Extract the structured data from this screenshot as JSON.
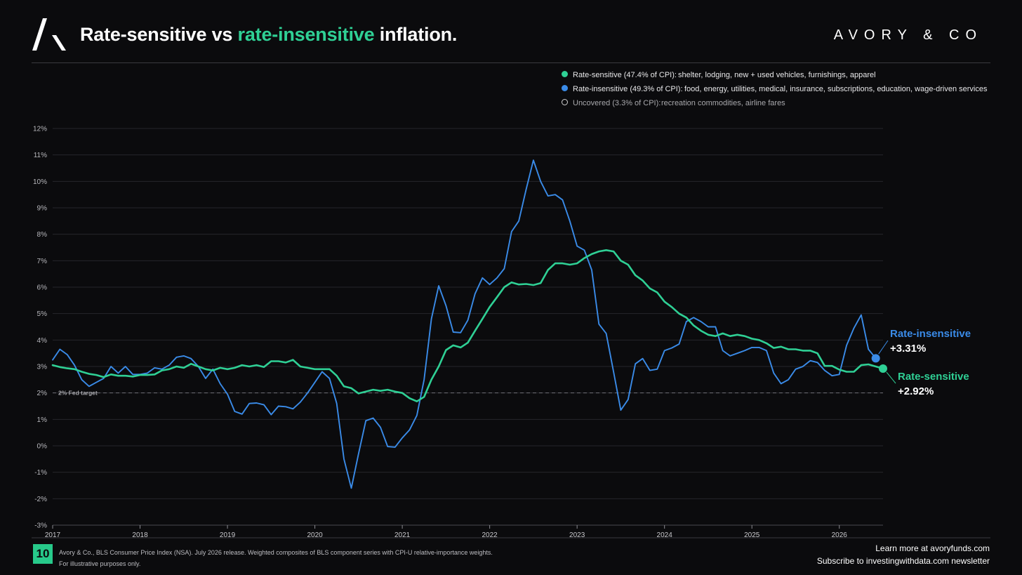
{
  "header": {
    "title_part1": "Rate-sensitive vs ",
    "title_accent": "rate-insensitive",
    "title_part2": " inflation.",
    "brand": "AVORY & CO",
    "logo_icon": "avory-logo-icon"
  },
  "legend": [
    {
      "label": "Rate-sensitive (47.4% of CPI):",
      "desc": "shelter, lodging, new + used vehicles, furnishings, apparel",
      "color": "#2fd095",
      "style": "filled"
    },
    {
      "label": "Rate-insensitive (49.3% of CPI):",
      "desc": "food, energy, utilities, medical, insurance, subscriptions, education, wage-driven services",
      "color": "#3a8be8",
      "style": "filled"
    },
    {
      "label": "Uncovered (3.3% of CPI):",
      "desc": "recreation commodities, airline fares",
      "color": "#d0d0d0",
      "style": "hollow"
    }
  ],
  "chart_data": {
    "type": "line",
    "x_ticks": [
      "2017",
      "2018",
      "2019",
      "2020",
      "2021",
      "2022",
      "2023",
      "2024",
      "2025",
      "2026"
    ],
    "y_ticks": [
      "12%",
      "11%",
      "10%",
      "9%",
      "8%",
      "7%",
      "6%",
      "5%",
      "4%",
      "3%",
      "2%",
      "1%",
      "0%",
      "-1%",
      "-2%",
      "-3%"
    ],
    "ylim": [
      -3,
      12
    ],
    "xlim": [
      2017.0,
      2026.5
    ],
    "grid": true,
    "reference_line": {
      "value": 2,
      "label": "2% Fed target"
    },
    "series": [
      {
        "name": "Rate-sensitive",
        "color": "#2fd095",
        "end_label": "Rate-sensitive",
        "end_value": "+2.92%",
        "points": [
          [
            2017.0,
            3.05
          ],
          [
            2017.083,
            2.98
          ],
          [
            2017.167,
            2.93
          ],
          [
            2017.25,
            2.9
          ],
          [
            2017.333,
            2.8
          ],
          [
            2017.417,
            2.72
          ],
          [
            2017.5,
            2.68
          ],
          [
            2017.583,
            2.6
          ],
          [
            2017.667,
            2.7
          ],
          [
            2017.75,
            2.65
          ],
          [
            2017.833,
            2.65
          ],
          [
            2017.917,
            2.62
          ],
          [
            2018.0,
            2.68
          ],
          [
            2018.083,
            2.68
          ],
          [
            2018.167,
            2.7
          ],
          [
            2018.25,
            2.85
          ],
          [
            2018.333,
            2.9
          ],
          [
            2018.417,
            3.0
          ],
          [
            2018.5,
            2.95
          ],
          [
            2018.583,
            3.1
          ],
          [
            2018.667,
            3.0
          ],
          [
            2018.75,
            2.9
          ],
          [
            2018.833,
            2.85
          ],
          [
            2018.917,
            2.95
          ],
          [
            2019.0,
            2.9
          ],
          [
            2019.083,
            2.95
          ],
          [
            2019.167,
            3.05
          ],
          [
            2019.25,
            3.0
          ],
          [
            2019.333,
            3.05
          ],
          [
            2019.417,
            2.98
          ],
          [
            2019.5,
            3.2
          ],
          [
            2019.583,
            3.2
          ],
          [
            2019.667,
            3.15
          ],
          [
            2019.75,
            3.25
          ],
          [
            2019.833,
            3.0
          ],
          [
            2019.917,
            2.95
          ],
          [
            2020.0,
            2.9
          ],
          [
            2020.083,
            2.9
          ],
          [
            2020.167,
            2.9
          ],
          [
            2020.25,
            2.65
          ],
          [
            2020.333,
            2.25
          ],
          [
            2020.417,
            2.18
          ],
          [
            2020.5,
            1.98
          ],
          [
            2020.583,
            2.05
          ],
          [
            2020.667,
            2.12
          ],
          [
            2020.75,
            2.08
          ],
          [
            2020.833,
            2.12
          ],
          [
            2020.917,
            2.05
          ],
          [
            2021.0,
            2.0
          ],
          [
            2021.083,
            1.8
          ],
          [
            2021.167,
            1.68
          ],
          [
            2021.25,
            1.85
          ],
          [
            2021.333,
            2.5
          ],
          [
            2021.417,
            3.0
          ],
          [
            2021.5,
            3.62
          ],
          [
            2021.583,
            3.8
          ],
          [
            2021.667,
            3.72
          ],
          [
            2021.75,
            3.9
          ],
          [
            2021.833,
            4.35
          ],
          [
            2021.917,
            4.8
          ],
          [
            2022.0,
            5.25
          ],
          [
            2022.083,
            5.62
          ],
          [
            2022.167,
            6.0
          ],
          [
            2022.25,
            6.18
          ],
          [
            2022.333,
            6.1
          ],
          [
            2022.417,
            6.12
          ],
          [
            2022.5,
            6.08
          ],
          [
            2022.583,
            6.15
          ],
          [
            2022.667,
            6.65
          ],
          [
            2022.75,
            6.9
          ],
          [
            2022.833,
            6.9
          ],
          [
            2022.917,
            6.85
          ],
          [
            2023.0,
            6.9
          ],
          [
            2023.083,
            7.1
          ],
          [
            2023.167,
            7.25
          ],
          [
            2023.25,
            7.35
          ],
          [
            2023.333,
            7.4
          ],
          [
            2023.417,
            7.35
          ],
          [
            2023.5,
            7.0
          ],
          [
            2023.583,
            6.85
          ],
          [
            2023.667,
            6.45
          ],
          [
            2023.75,
            6.25
          ],
          [
            2023.833,
            5.95
          ],
          [
            2023.917,
            5.8
          ],
          [
            2024.0,
            5.45
          ],
          [
            2024.083,
            5.25
          ],
          [
            2024.167,
            5.0
          ],
          [
            2024.25,
            4.85
          ],
          [
            2024.333,
            4.55
          ],
          [
            2024.417,
            4.35
          ],
          [
            2024.5,
            4.2
          ],
          [
            2024.583,
            4.15
          ],
          [
            2024.667,
            4.25
          ],
          [
            2024.75,
            4.15
          ],
          [
            2024.833,
            4.2
          ],
          [
            2024.917,
            4.15
          ],
          [
            2025.0,
            4.05
          ],
          [
            2025.083,
            4.0
          ],
          [
            2025.167,
            3.88
          ],
          [
            2025.25,
            3.7
          ],
          [
            2025.333,
            3.75
          ],
          [
            2025.417,
            3.65
          ],
          [
            2025.5,
            3.65
          ],
          [
            2025.583,
            3.6
          ],
          [
            2025.667,
            3.6
          ],
          [
            2025.75,
            3.5
          ],
          [
            2025.833,
            3.02
          ],
          [
            2025.917,
            3.02
          ],
          [
            2026.0,
            2.88
          ],
          [
            2026.083,
            2.8
          ],
          [
            2026.167,
            2.8
          ],
          [
            2026.25,
            3.05
          ],
          [
            2026.333,
            3.08
          ],
          [
            2026.417,
            3.0
          ],
          [
            2026.5,
            2.92
          ]
        ]
      },
      {
        "name": "Rate-insensitive",
        "color": "#3a8be8",
        "end_label": "Rate-insensitive",
        "end_value": "+3.31%",
        "points": [
          [
            2017.0,
            3.25
          ],
          [
            2017.083,
            3.65
          ],
          [
            2017.167,
            3.45
          ],
          [
            2017.25,
            3.05
          ],
          [
            2017.333,
            2.5
          ],
          [
            2017.417,
            2.25
          ],
          [
            2017.5,
            2.4
          ],
          [
            2017.583,
            2.55
          ],
          [
            2017.667,
            3.0
          ],
          [
            2017.75,
            2.75
          ],
          [
            2017.833,
            3.0
          ],
          [
            2017.917,
            2.7
          ],
          [
            2018.0,
            2.7
          ],
          [
            2018.083,
            2.75
          ],
          [
            2018.167,
            2.95
          ],
          [
            2018.25,
            2.9
          ],
          [
            2018.333,
            3.05
          ],
          [
            2018.417,
            3.35
          ],
          [
            2018.5,
            3.4
          ],
          [
            2018.583,
            3.3
          ],
          [
            2018.667,
            3.0
          ],
          [
            2018.75,
            2.55
          ],
          [
            2018.833,
            2.9
          ],
          [
            2018.917,
            2.35
          ],
          [
            2019.0,
            1.95
          ],
          [
            2019.083,
            1.3
          ],
          [
            2019.167,
            1.2
          ],
          [
            2019.25,
            1.6
          ],
          [
            2019.333,
            1.62
          ],
          [
            2019.417,
            1.55
          ],
          [
            2019.5,
            1.18
          ],
          [
            2019.583,
            1.5
          ],
          [
            2019.667,
            1.48
          ],
          [
            2019.75,
            1.4
          ],
          [
            2019.833,
            1.65
          ],
          [
            2019.917,
            2.0
          ],
          [
            2020.0,
            2.4
          ],
          [
            2020.083,
            2.8
          ],
          [
            2020.167,
            2.55
          ],
          [
            2020.25,
            1.6
          ],
          [
            2020.333,
            -0.5
          ],
          [
            2020.417,
            -1.6
          ],
          [
            2020.5,
            -0.3
          ],
          [
            2020.583,
            0.95
          ],
          [
            2020.667,
            1.05
          ],
          [
            2020.75,
            0.7
          ],
          [
            2020.833,
            -0.03
          ],
          [
            2020.917,
            -0.05
          ],
          [
            2021.0,
            0.3
          ],
          [
            2021.083,
            0.6
          ],
          [
            2021.167,
            1.15
          ],
          [
            2021.25,
            2.5
          ],
          [
            2021.333,
            4.8
          ],
          [
            2021.417,
            6.05
          ],
          [
            2021.5,
            5.3
          ],
          [
            2021.583,
            4.3
          ],
          [
            2021.667,
            4.28
          ],
          [
            2021.75,
            4.75
          ],
          [
            2021.833,
            5.75
          ],
          [
            2021.917,
            6.35
          ],
          [
            2022.0,
            6.1
          ],
          [
            2022.083,
            6.35
          ],
          [
            2022.167,
            6.7
          ],
          [
            2022.25,
            8.1
          ],
          [
            2022.333,
            8.5
          ],
          [
            2022.417,
            9.7
          ],
          [
            2022.5,
            10.8
          ],
          [
            2022.583,
            10.0
          ],
          [
            2022.667,
            9.45
          ],
          [
            2022.75,
            9.5
          ],
          [
            2022.833,
            9.3
          ],
          [
            2022.917,
            8.5
          ],
          [
            2023.0,
            7.55
          ],
          [
            2023.083,
            7.4
          ],
          [
            2023.167,
            6.65
          ],
          [
            2023.25,
            4.6
          ],
          [
            2023.333,
            4.25
          ],
          [
            2023.417,
            2.8
          ],
          [
            2023.5,
            1.35
          ],
          [
            2023.583,
            1.75
          ],
          [
            2023.667,
            3.1
          ],
          [
            2023.75,
            3.3
          ],
          [
            2023.833,
            2.85
          ],
          [
            2023.917,
            2.9
          ],
          [
            2024.0,
            3.6
          ],
          [
            2024.083,
            3.7
          ],
          [
            2024.167,
            3.85
          ],
          [
            2024.25,
            4.7
          ],
          [
            2024.333,
            4.85
          ],
          [
            2024.417,
            4.7
          ],
          [
            2024.5,
            4.5
          ],
          [
            2024.583,
            4.5
          ],
          [
            2024.667,
            3.6
          ],
          [
            2024.75,
            3.4
          ],
          [
            2024.833,
            3.5
          ],
          [
            2024.917,
            3.6
          ],
          [
            2025.0,
            3.72
          ],
          [
            2025.083,
            3.72
          ],
          [
            2025.167,
            3.6
          ],
          [
            2025.25,
            2.75
          ],
          [
            2025.333,
            2.35
          ],
          [
            2025.417,
            2.5
          ],
          [
            2025.5,
            2.9
          ],
          [
            2025.583,
            3.0
          ],
          [
            2025.667,
            3.22
          ],
          [
            2025.75,
            3.15
          ],
          [
            2025.833,
            2.85
          ],
          [
            2025.917,
            2.65
          ],
          [
            2026.0,
            2.7
          ],
          [
            2026.083,
            3.8
          ],
          [
            2026.167,
            4.45
          ],
          [
            2026.25,
            4.95
          ],
          [
            2026.333,
            3.65
          ],
          [
            2026.417,
            3.31
          ]
        ]
      }
    ]
  },
  "footer": {
    "page_number": "10",
    "source_line1": "Avory & Co., BLS Consumer Price Index (NSA). July 2026 release. Weighted composites of BLS component series with CPI-U relative-importance weights.",
    "source_line2": "For illustrative purposes only.",
    "cta_line1": "Learn more at avoryfunds.com",
    "cta_line2": "Subscribe to investingwithdata.com newsletter"
  }
}
